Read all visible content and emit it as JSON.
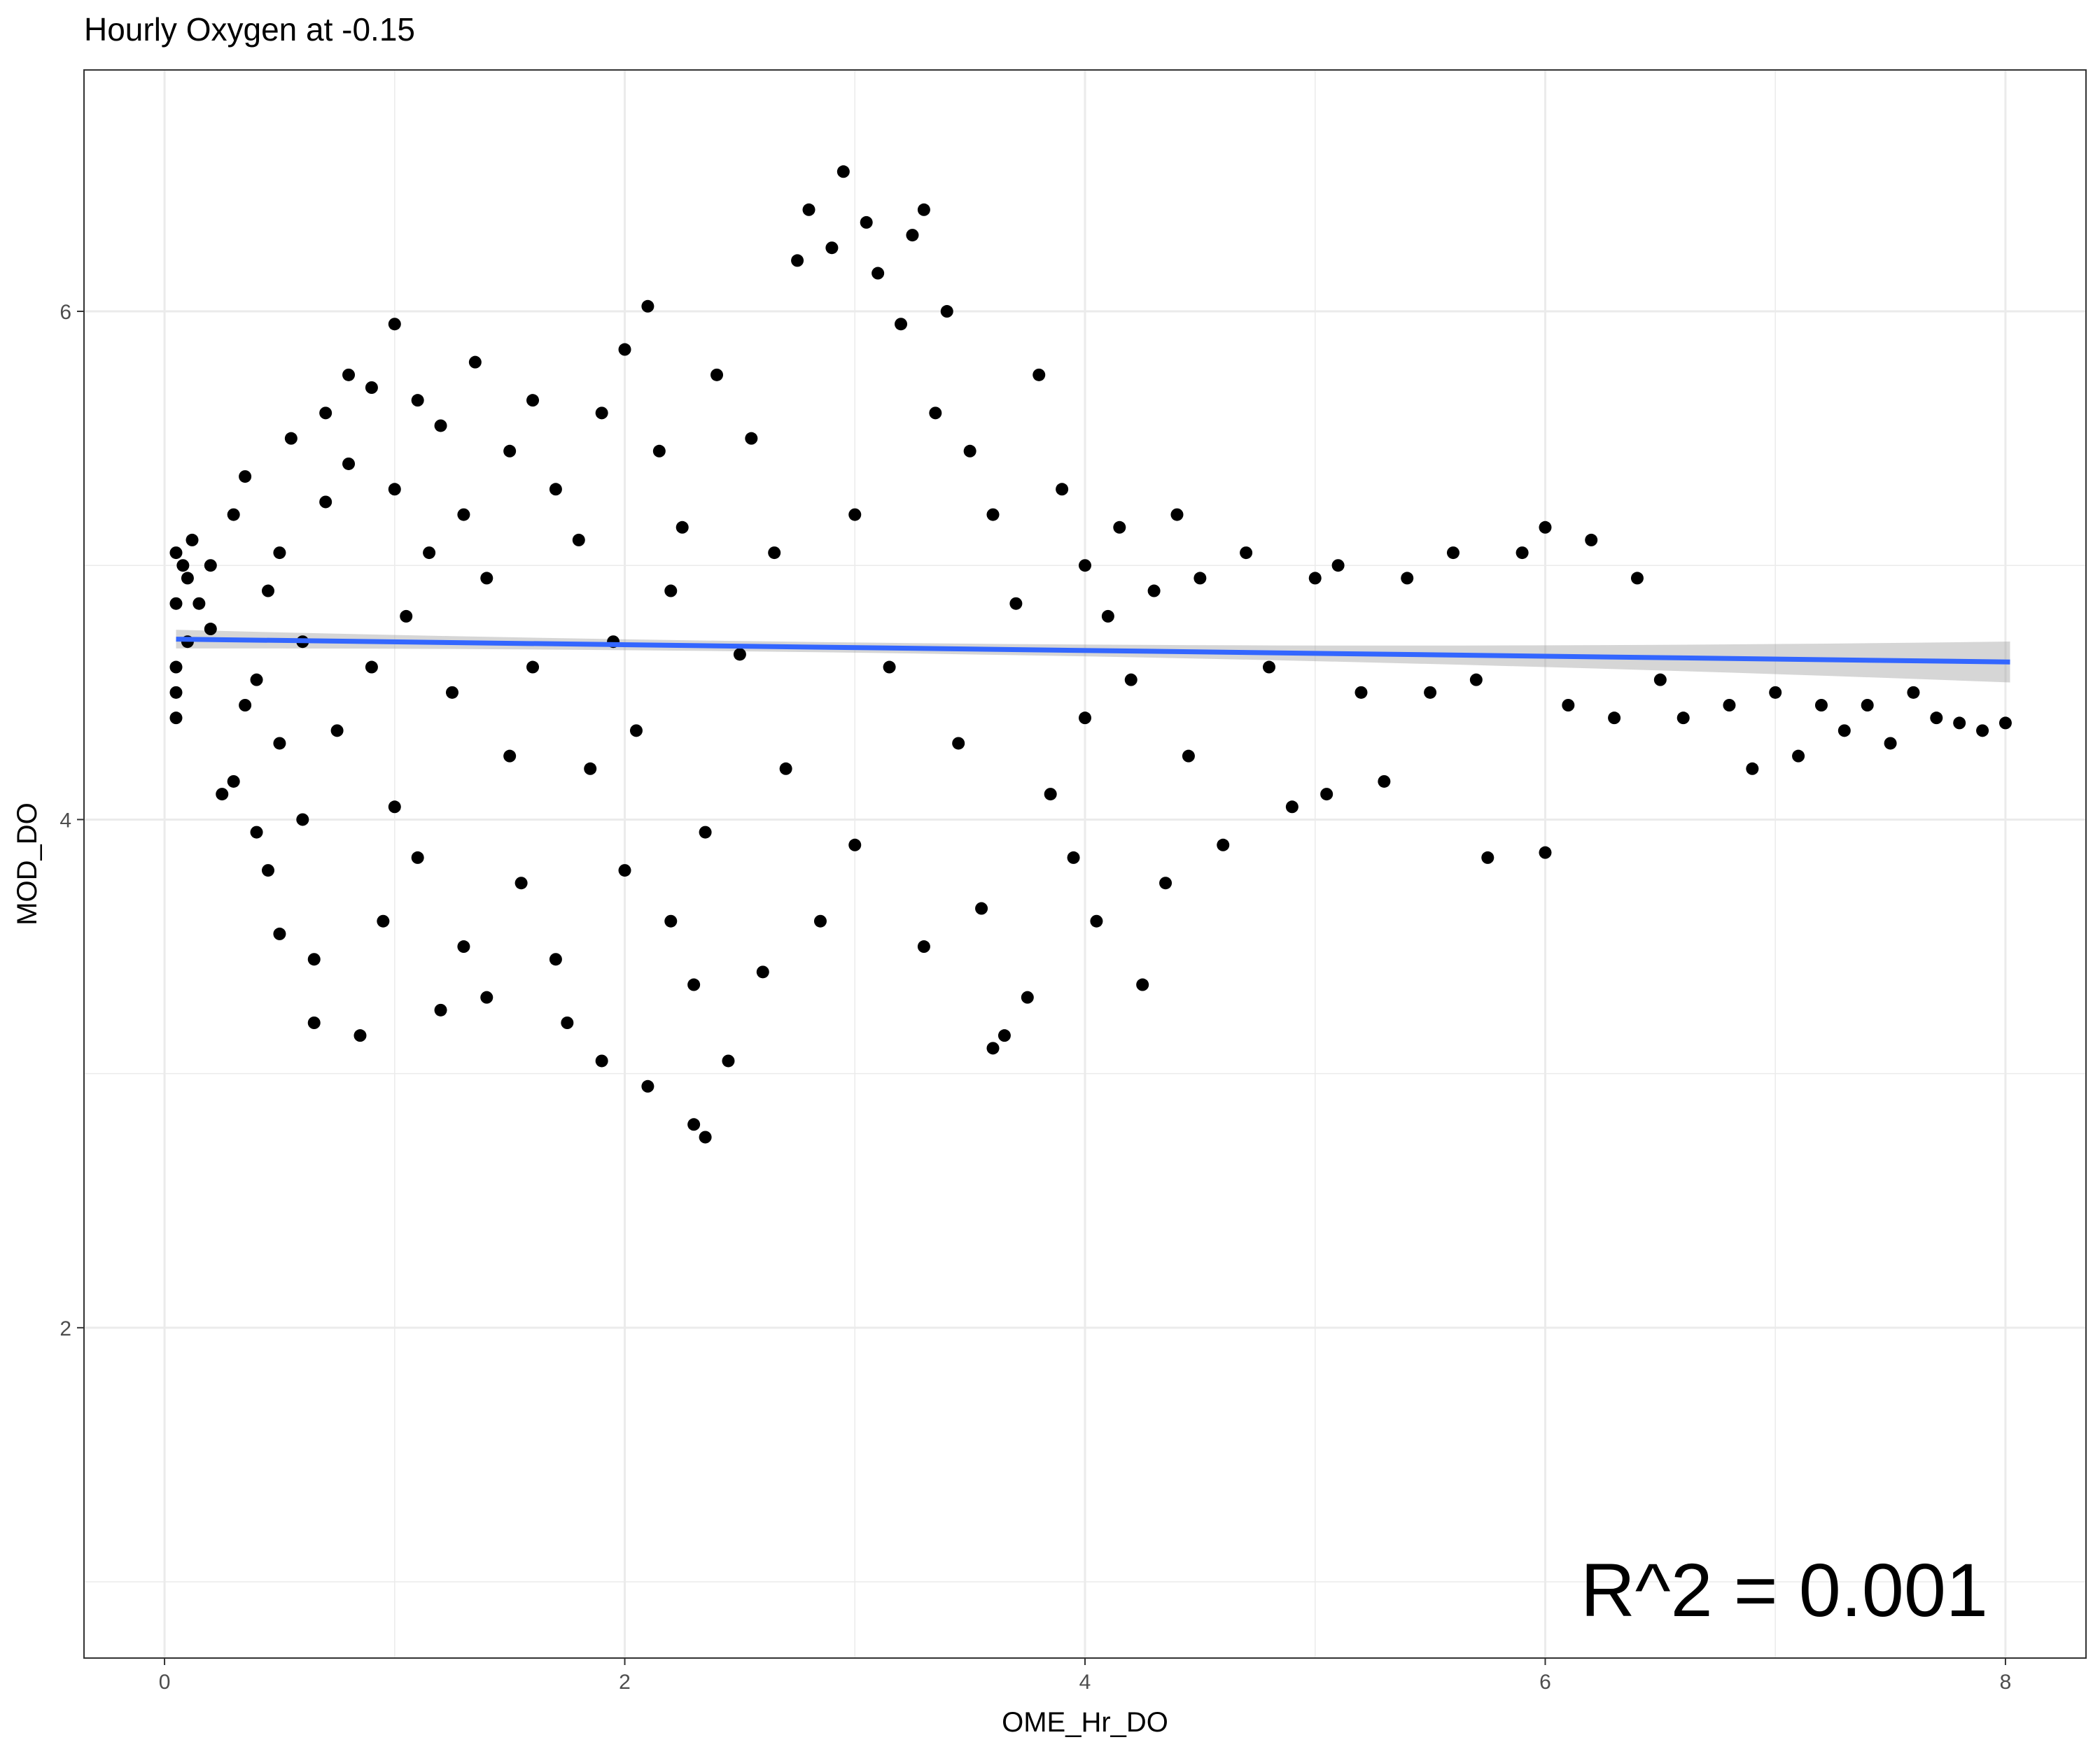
{
  "chart_data": {
    "type": "scatter",
    "title": "Hourly Oxygen at  -0.15",
    "xlabel": "OME_Hr_DO",
    "ylabel": "MOD_DO",
    "xlim": [
      -0.35,
      8.35
    ],
    "ylim": [
      0.7,
      6.95
    ],
    "x_ticks": [
      0,
      2,
      4,
      6,
      8
    ],
    "x_tick_labels": [
      "0",
      "2",
      "4",
      "6",
      "8"
    ],
    "y_ticks": [
      2,
      4,
      6
    ],
    "y_tick_labels": [
      "2",
      "4",
      "6"
    ],
    "grid": true,
    "annotation": "R^2 =  0.001",
    "series": [
      {
        "name": "observations",
        "color": "#000000",
        "points": [
          [
            0.05,
            5.05
          ],
          [
            0.05,
            4.85
          ],
          [
            0.05,
            4.6
          ],
          [
            0.05,
            4.5
          ],
          [
            0.05,
            4.4
          ],
          [
            0.08,
            5.0
          ],
          [
            0.1,
            4.95
          ],
          [
            0.1,
            4.7
          ],
          [
            0.12,
            5.1
          ],
          [
            0.15,
            4.85
          ],
          [
            0.2,
            5.0
          ],
          [
            0.2,
            4.75
          ],
          [
            0.25,
            4.1
          ],
          [
            0.3,
            4.15
          ],
          [
            0.3,
            5.2
          ],
          [
            0.35,
            4.45
          ],
          [
            0.35,
            5.35
          ],
          [
            0.4,
            3.95
          ],
          [
            0.4,
            4.55
          ],
          [
            0.45,
            3.8
          ],
          [
            0.45,
            4.9
          ],
          [
            0.5,
            3.55
          ],
          [
            0.5,
            4.3
          ],
          [
            0.5,
            5.05
          ],
          [
            0.55,
            5.5
          ],
          [
            0.6,
            4.0
          ],
          [
            0.6,
            4.7
          ],
          [
            0.65,
            3.2
          ],
          [
            0.65,
            3.45
          ],
          [
            0.7,
            5.6
          ],
          [
            0.7,
            5.25
          ],
          [
            0.75,
            4.35
          ],
          [
            0.8,
            5.75
          ],
          [
            0.8,
            5.4
          ],
          [
            0.85,
            3.15
          ],
          [
            0.9,
            5.7
          ],
          [
            0.9,
            4.6
          ],
          [
            0.95,
            3.6
          ],
          [
            1.0,
            5.95
          ],
          [
            1.0,
            5.3
          ],
          [
            1.0,
            4.05
          ],
          [
            1.05,
            4.8
          ],
          [
            1.1,
            5.65
          ],
          [
            1.1,
            3.85
          ],
          [
            1.15,
            5.05
          ],
          [
            1.2,
            5.55
          ],
          [
            1.2,
            3.25
          ],
          [
            1.25,
            4.5
          ],
          [
            1.3,
            5.2
          ],
          [
            1.3,
            3.5
          ],
          [
            1.35,
            5.8
          ],
          [
            1.4,
            4.95
          ],
          [
            1.4,
            3.3
          ],
          [
            1.5,
            5.45
          ],
          [
            1.5,
            4.25
          ],
          [
            1.55,
            3.75
          ],
          [
            1.6,
            5.65
          ],
          [
            1.6,
            4.6
          ],
          [
            1.7,
            3.45
          ],
          [
            1.7,
            5.3
          ],
          [
            1.75,
            3.2
          ],
          [
            1.8,
            5.1
          ],
          [
            1.85,
            4.2
          ],
          [
            1.9,
            3.05
          ],
          [
            1.9,
            5.6
          ],
          [
            1.95,
            4.7
          ],
          [
            2.0,
            5.85
          ],
          [
            2.0,
            3.8
          ],
          [
            2.05,
            4.35
          ],
          [
            2.1,
            6.02
          ],
          [
            2.1,
            2.95
          ],
          [
            2.15,
            5.45
          ],
          [
            2.2,
            3.6
          ],
          [
            2.2,
            4.9
          ],
          [
            2.25,
            5.15
          ],
          [
            2.3,
            3.35
          ],
          [
            2.3,
            2.8
          ],
          [
            2.35,
            2.75
          ],
          [
            2.35,
            3.95
          ],
          [
            2.4,
            5.75
          ],
          [
            2.45,
            3.05
          ],
          [
            2.5,
            4.65
          ],
          [
            2.55,
            5.5
          ],
          [
            2.6,
            3.4
          ],
          [
            2.65,
            5.05
          ],
          [
            2.7,
            4.2
          ],
          [
            2.75,
            6.2
          ],
          [
            2.8,
            6.4
          ],
          [
            2.85,
            3.6
          ],
          [
            2.9,
            6.25
          ],
          [
            2.95,
            6.55
          ],
          [
            3.0,
            5.2
          ],
          [
            3.0,
            3.9
          ],
          [
            3.05,
            6.35
          ],
          [
            3.1,
            6.15
          ],
          [
            3.15,
            4.6
          ],
          [
            3.2,
            5.95
          ],
          [
            3.25,
            6.3
          ],
          [
            3.3,
            6.4
          ],
          [
            3.3,
            3.5
          ],
          [
            3.35,
            5.6
          ],
          [
            3.4,
            6.0
          ],
          [
            3.45,
            4.3
          ],
          [
            3.5,
            5.45
          ],
          [
            3.55,
            3.65
          ],
          [
            3.6,
            5.2
          ],
          [
            3.6,
            3.1
          ],
          [
            3.65,
            3.15
          ],
          [
            3.7,
            4.85
          ],
          [
            3.75,
            3.3
          ],
          [
            3.8,
            5.75
          ],
          [
            3.85,
            4.1
          ],
          [
            3.9,
            5.3
          ],
          [
            3.95,
            3.85
          ],
          [
            4.0,
            5.0
          ],
          [
            4.0,
            4.4
          ],
          [
            4.05,
            3.6
          ],
          [
            4.1,
            4.8
          ],
          [
            4.15,
            5.15
          ],
          [
            4.2,
            4.55
          ],
          [
            4.25,
            3.35
          ],
          [
            4.3,
            4.9
          ],
          [
            4.35,
            3.75
          ],
          [
            4.4,
            5.2
          ],
          [
            4.45,
            4.25
          ],
          [
            4.5,
            4.95
          ],
          [
            4.6,
            3.9
          ],
          [
            4.7,
            5.05
          ],
          [
            4.8,
            4.6
          ],
          [
            4.9,
            4.05
          ],
          [
            5.0,
            4.95
          ],
          [
            5.05,
            4.1
          ],
          [
            5.1,
            5.0
          ],
          [
            5.2,
            4.5
          ],
          [
            5.3,
            4.15
          ],
          [
            5.4,
            4.95
          ],
          [
            5.5,
            4.5
          ],
          [
            5.6,
            5.05
          ],
          [
            5.7,
            4.55
          ],
          [
            5.75,
            3.85
          ],
          [
            5.9,
            5.05
          ],
          [
            6.0,
            5.15
          ],
          [
            6.0,
            3.87
          ],
          [
            6.1,
            4.45
          ],
          [
            6.2,
            5.1
          ],
          [
            6.3,
            4.4
          ],
          [
            6.4,
            4.95
          ],
          [
            6.5,
            4.55
          ],
          [
            6.6,
            4.4
          ],
          [
            6.8,
            4.45
          ],
          [
            6.9,
            4.2
          ],
          [
            7.0,
            4.5
          ],
          [
            7.1,
            4.25
          ],
          [
            7.2,
            4.45
          ],
          [
            7.3,
            4.35
          ],
          [
            7.4,
            4.45
          ],
          [
            7.5,
            4.3
          ],
          [
            7.6,
            4.5
          ],
          [
            7.7,
            4.4
          ],
          [
            7.8,
            4.38
          ],
          [
            7.9,
            4.35
          ],
          [
            8.0,
            4.38
          ]
        ]
      },
      {
        "name": "linear fit",
        "color": "#3366ff",
        "x": [
          0.05,
          8.02
        ],
        "y": [
          4.71,
          4.62
        ]
      }
    ]
  }
}
